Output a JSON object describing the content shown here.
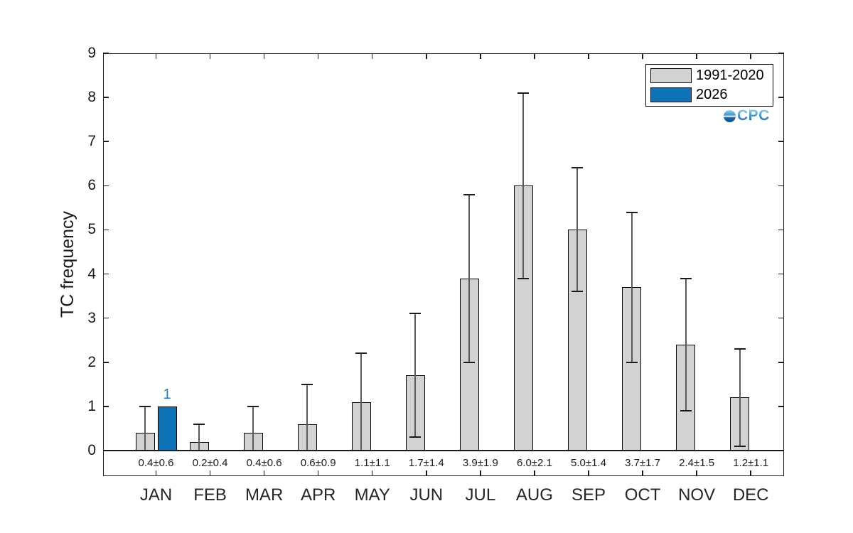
{
  "figure": {
    "ylabel": "TC frequency",
    "background_color": "#ffffff",
    "axis_color": "#1a1a1a"
  },
  "legend": {
    "position": "top-right",
    "items": [
      {
        "label": "1991-2020",
        "color": "#d2d2d2",
        "edge": "#000000"
      },
      {
        "label": "2026",
        "color": "#0b73b6",
        "edge": "#000000"
      }
    ]
  },
  "logo": {
    "text": "CPC",
    "icon": "globe-icon",
    "color_top": "#9ad8f0",
    "color_bottom": "#0d5aa8"
  },
  "chart_data": {
    "type": "bar",
    "title": "",
    "xlabel": "",
    "ylabel": "TC frequency",
    "ylim": [
      -0.58,
      9
    ],
    "yticks": [
      0,
      1,
      2,
      3,
      4,
      5,
      6,
      7,
      8,
      9
    ],
    "grid": false,
    "legend_position": "top-right",
    "categories": [
      "JAN",
      "FEB",
      "MAR",
      "APR",
      "MAY",
      "JUN",
      "JUL",
      "AUG",
      "SEP",
      "OCT",
      "NOV",
      "DEC"
    ],
    "series": [
      {
        "name": "1991-2020",
        "color": "#d2d2d2",
        "values": [
          0.4,
          0.2,
          0.4,
          0.6,
          1.1,
          1.7,
          3.9,
          6.0,
          5.0,
          3.7,
          2.4,
          1.2
        ],
        "errors": [
          0.6,
          0.4,
          0.6,
          0.9,
          1.1,
          1.4,
          1.9,
          2.1,
          1.4,
          1.7,
          1.5,
          1.1
        ]
      },
      {
        "name": "2026",
        "color": "#0b73b6",
        "values": [
          1,
          null,
          null,
          null,
          null,
          null,
          null,
          null,
          null,
          null,
          null,
          null
        ]
      }
    ],
    "value_labels": [
      "0.4±0.6",
      "0.2±0.4",
      "0.4±0.6",
      "0.6±0.9",
      "1.1±1.1",
      "1.7±1.4",
      "3.9±1.9",
      "6.0±2.1",
      "5.0±1.4",
      "3.7±1.7",
      "2.4±1.5",
      "1.2±1.1"
    ],
    "annotations": [
      {
        "category": "JAN",
        "series": "2026",
        "text": "1",
        "color": "#1b83c6"
      }
    ]
  }
}
